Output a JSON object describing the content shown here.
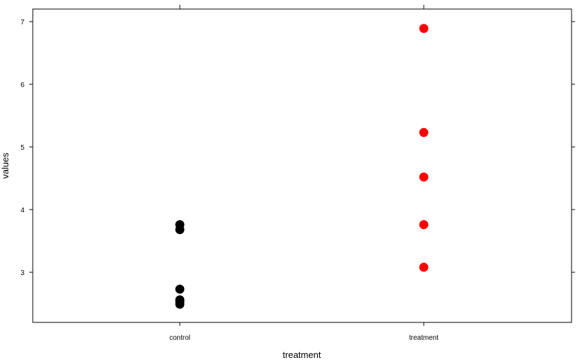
{
  "chart_data": {
    "type": "scatter",
    "title": "",
    "xlabel": "treatment",
    "ylabel": "values",
    "categories": [
      "control",
      "treatment"
    ],
    "ylim": [
      2.2,
      7.2
    ],
    "yticks": [
      3,
      4,
      5,
      6,
      7
    ],
    "grid": false,
    "series": [
      {
        "category": "control",
        "color": "#000000",
        "values": [
          2.49,
          2.53,
          2.56,
          2.73,
          3.68,
          3.76
        ]
      },
      {
        "category": "treatment",
        "color": "#ff0000",
        "values": [
          3.08,
          3.76,
          4.52,
          5.23,
          6.89
        ]
      }
    ]
  }
}
